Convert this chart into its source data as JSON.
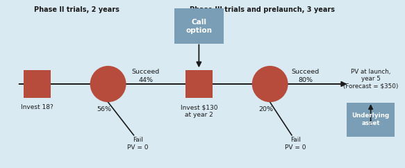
{
  "bg_color": "#d9eaf2",
  "node_color": "#b84c3c",
  "box_color": "#b84c3c",
  "call_box_color": "#7a9eb5",
  "underlying_box_color": "#7a9eb5",
  "text_color": "#1a1a1a",
  "arrow_color": "#1a1a1a",
  "line_color": "#1a1a1a",
  "phase2_label": "Phase II trials, 2 years",
  "phase3_label": "Phase III trials and prelaunch, 3 years",
  "call_option_label": "Call\noption",
  "underlying_label": "Underlying\nasset",
  "pv_launch_label": "PV at launch,\nyear 5\n(Forecast = $350)",
  "invest_label": "Invest 18?",
  "invest2_label": "Invest $130\nat year 2",
  "succeed1_label": "Succeed",
  "succeed1_pct": "44%",
  "fail1_pct": "56%",
  "fail1_label": "Fail\nPV = 0",
  "succeed2_label": "Succeed",
  "succeed2_pct": "80%",
  "fail2_pct": "20%",
  "fail2_label": "Fail\nPV = 0",
  "nx": [
    0.09,
    0.27,
    0.5,
    0.68
  ],
  "ny": 0.5,
  "figsize": [
    5.83,
    2.42
  ],
  "dpi": 100
}
